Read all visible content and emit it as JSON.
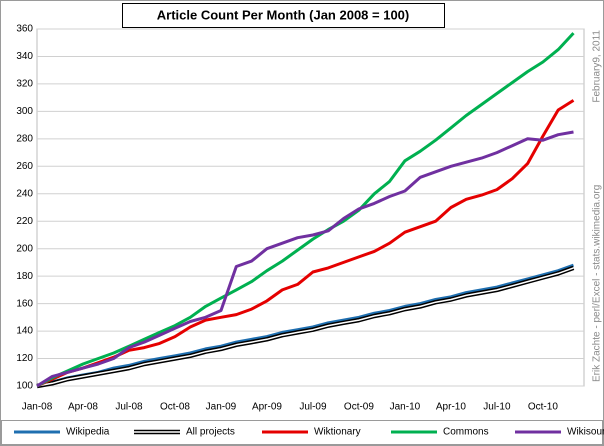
{
  "chart_data": {
    "type": "line",
    "title": "Article Count Per Month  (Jan 2008  = 100)",
    "date_note": "February9, 2011",
    "credit_note": "Erik Zachte - perl/Excel - stats.wikimedia.org",
    "categories": [
      "Jan-08",
      null,
      null,
      "Apr-08",
      null,
      null,
      "Jul-08",
      null,
      null,
      "Oct-08",
      null,
      null,
      "Jan-09",
      null,
      null,
      "Apr-09",
      null,
      null,
      "Jul-09",
      null,
      null,
      "Oct-09",
      null,
      null,
      "Jan-10",
      null,
      null,
      "Apr-10",
      null,
      null,
      "Jul-10",
      null,
      null,
      "Oct-10",
      null,
      null
    ],
    "ylim": [
      100,
      360
    ],
    "yticks": [
      100,
      120,
      140,
      160,
      180,
      200,
      220,
      240,
      260,
      280,
      300,
      320,
      340,
      360
    ],
    "grid": true,
    "legend": "bottom",
    "series": [
      {
        "name": "Wikipedia",
        "color": "#1f6fb0",
        "values": [
          100,
          103,
          106,
          108,
          110,
          113,
          115,
          118,
          120,
          122,
          124,
          127,
          129,
          132,
          134,
          136,
          139,
          141,
          143,
          146,
          148,
          150,
          153,
          155,
          158,
          160,
          163,
          165,
          168,
          170,
          172,
          175,
          178,
          181,
          184,
          188
        ]
      },
      {
        "name": "All projects",
        "color": "#000000",
        "style": "double",
        "values": [
          100,
          102,
          105,
          107,
          109,
          111,
          113,
          116,
          118,
          120,
          122,
          125,
          127,
          130,
          132,
          134,
          137,
          139,
          141,
          144,
          146,
          148,
          151,
          153,
          156,
          158,
          161,
          163,
          166,
          168,
          170,
          173,
          176,
          179,
          182,
          186
        ]
      },
      {
        "name": "Wiktionary",
        "color": "#e50000",
        "values": [
          100,
          105,
          110,
          113,
          117,
          121,
          126,
          128,
          131,
          136,
          143,
          148,
          150,
          152,
          156,
          162,
          170,
          174,
          183,
          186,
          190,
          194,
          198,
          204,
          212,
          216,
          220,
          230,
          236,
          239,
          243,
          251,
          262,
          282,
          301,
          308
        ]
      },
      {
        "name": "Commons",
        "color": "#00b050",
        "values": [
          100,
          106,
          111,
          116,
          120,
          124,
          129,
          134,
          139,
          144,
          150,
          158,
          164,
          170,
          176,
          184,
          191,
          199,
          207,
          214,
          220,
          228,
          240,
          249,
          264,
          271,
          279,
          288,
          297,
          305,
          313,
          321,
          329,
          336,
          345,
          357
        ]
      },
      {
        "name": "Wikisource",
        "color": "#7030a0",
        "values": [
          100,
          107,
          110,
          113,
          116,
          120,
          128,
          132,
          137,
          142,
          147,
          150,
          155,
          187,
          191,
          200,
          204,
          208,
          210,
          213,
          222,
          229,
          233,
          238,
          242,
          252,
          256,
          260,
          263,
          266,
          270,
          275,
          280,
          279,
          283,
          285
        ]
      }
    ]
  }
}
